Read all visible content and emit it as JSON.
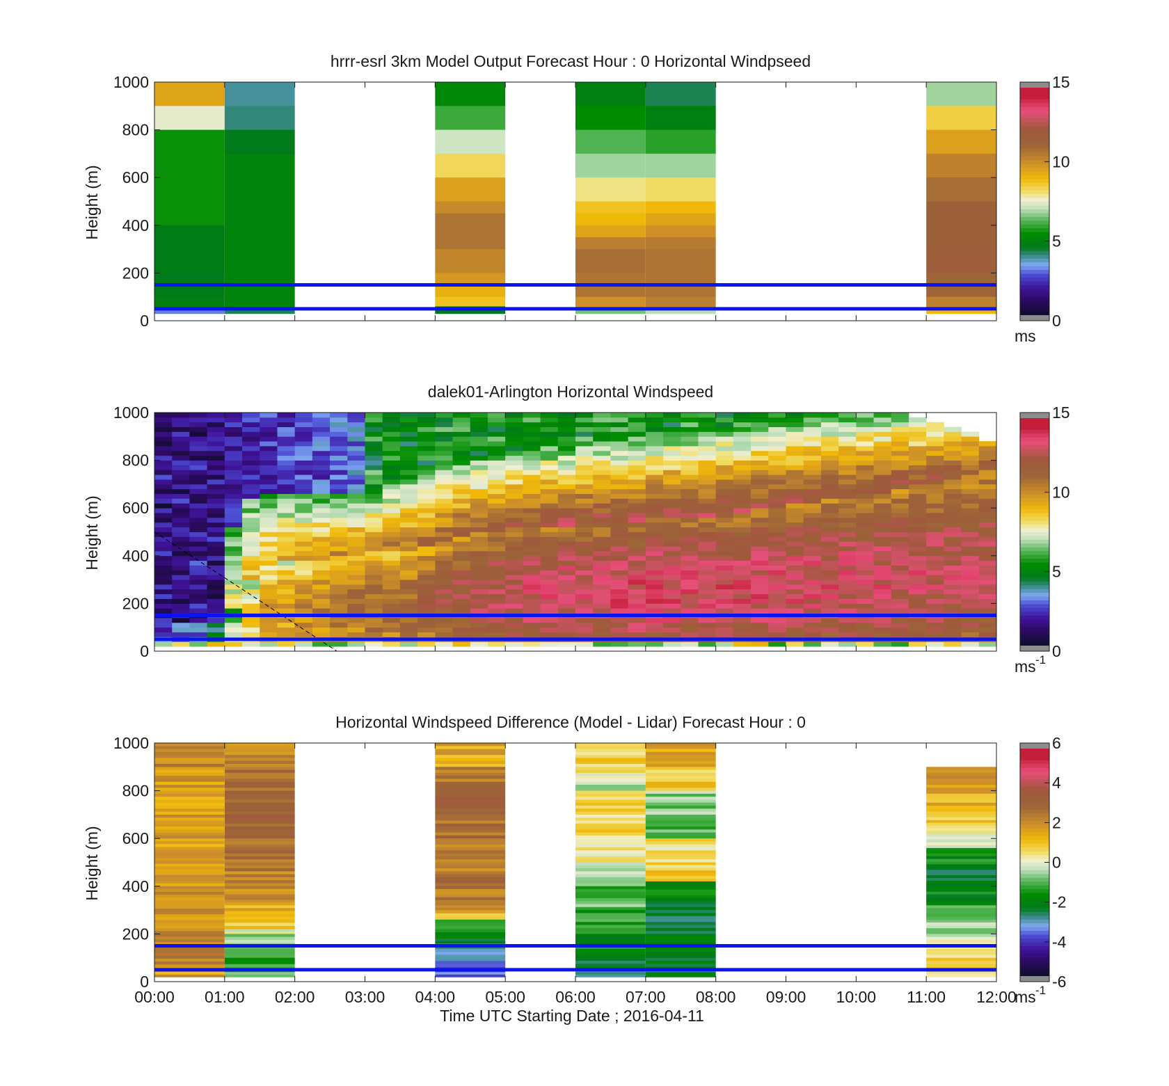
{
  "chart_data": [
    {
      "type": "heatmap",
      "title": "hrrr-esrl 3km Model Output   Forecast Hour : 0 Horizontal Windpseed",
      "ylabel": "Height (m)",
      "xlabel": "",
      "ylim": [
        0,
        1000
      ],
      "yticks": [
        "0",
        "200",
        "400",
        "600",
        "800",
        "1000"
      ],
      "xlim_hours": [
        0,
        12
      ],
      "colorbar": {
        "min": 0,
        "max": 15,
        "ticks": [
          "0",
          "5",
          "10",
          "15"
        ],
        "unit": "ms",
        "scale": "speed"
      },
      "reference_lines_m": [
        150,
        50
      ],
      "columns": [
        {
          "start": 0,
          "end": 1,
          "bottom": 30,
          "cells": [
            [
              1000,
              9.5
            ],
            [
              900,
              7.5
            ],
            [
              800,
              5.5
            ],
            [
              600,
              5.5
            ],
            [
              400,
              4.6
            ],
            [
              200,
              4.5
            ],
            [
              100,
              4.8
            ],
            [
              50,
              3.0
            ]
          ]
        },
        {
          "start": 1,
          "end": 2,
          "bottom": 30,
          "cells": [
            [
              1000,
              3.8
            ],
            [
              900,
              4.0
            ],
            [
              800,
              4.5
            ],
            [
              700,
              5.0
            ],
            [
              400,
              5.0
            ],
            [
              100,
              5.0
            ],
            [
              50,
              4.2
            ]
          ]
        },
        {
          "start": 4,
          "end": 5,
          "bottom": 30,
          "cells": [
            [
              1000,
              5.2
            ],
            [
              900,
              6.0
            ],
            [
              800,
              7.2
            ],
            [
              700,
              8.3
            ],
            [
              600,
              9.6
            ],
            [
              500,
              10.2
            ],
            [
              450,
              10.8
            ],
            [
              300,
              10.3
            ],
            [
              200,
              9.8
            ],
            [
              150,
              9.2
            ],
            [
              100,
              8.8
            ],
            [
              60,
              4.5
            ]
          ]
        },
        {
          "start": 6,
          "end": 7,
          "bottom": 30,
          "cells": [
            [
              1000,
              4.8
            ],
            [
              900,
              5.4
            ],
            [
              800,
              6.2
            ],
            [
              700,
              6.8
            ],
            [
              600,
              8.0
            ],
            [
              500,
              8.8
            ],
            [
              450,
              9.0
            ],
            [
              400,
              9.5
            ],
            [
              350,
              10.5
            ],
            [
              300,
              11.0
            ],
            [
              200,
              10.8
            ],
            [
              100,
              10.0
            ],
            [
              50,
              6.5
            ]
          ]
        },
        {
          "start": 7,
          "end": 8,
          "bottom": 30,
          "cells": [
            [
              1000,
              4.2
            ],
            [
              900,
              4.8
            ],
            [
              800,
              5.8
            ],
            [
              700,
              6.8
            ],
            [
              600,
              8.2
            ],
            [
              500,
              9.0
            ],
            [
              450,
              9.5
            ],
            [
              400,
              10.0
            ],
            [
              350,
              10.6
            ],
            [
              300,
              10.8
            ],
            [
              100,
              10.5
            ],
            [
              50,
              7.0
            ]
          ]
        },
        {
          "start": 11,
          "end": 12,
          "bottom": 30,
          "cells": [
            [
              1000,
              6.8
            ],
            [
              900,
              8.5
            ],
            [
              800,
              9.6
            ],
            [
              700,
              10.4
            ],
            [
              600,
              11.0
            ],
            [
              500,
              11.5
            ],
            [
              300,
              11.8
            ],
            [
              200,
              11.2
            ],
            [
              100,
              10.4
            ],
            [
              50,
              9.0
            ]
          ]
        }
      ]
    },
    {
      "type": "heatmap",
      "title": "dalek01-Arlington  Horizontal Windspeed",
      "ylabel": "Height (m)",
      "xlabel": "",
      "ylim": [
        0,
        1000
      ],
      "yticks": [
        "0",
        "200",
        "400",
        "600",
        "800",
        "1000"
      ],
      "xlim_hours": [
        0,
        12
      ],
      "colorbar": {
        "min": 0,
        "max": 15,
        "ticks": [
          "0",
          "5",
          "10",
          "15"
        ],
        "unit": "ms",
        "unit_exp": "-1",
        "scale": "speed"
      },
      "reference_lines_m": [
        150,
        50
      ],
      "dashed_line": {
        "from": [
          0,
          500
        ],
        "to": [
          2.6,
          0
        ]
      },
      "jet_profile": {
        "hours": [
          0,
          0.5,
          1.0,
          1.25,
          1.5,
          2.0,
          2.5,
          3.0,
          3.5,
          4.0,
          4.5,
          5.0,
          6.0,
          7.0,
          8.0,
          9.0,
          10.0,
          11.0,
          11.8
        ],
        "top_m": [
          0,
          0,
          100,
          250,
          330,
          370,
          380,
          400,
          410,
          440,
          480,
          500,
          520,
          540,
          560,
          600,
          640,
          690,
          740
        ],
        "mix_top_m": [
          300,
          300,
          400,
          600,
          640,
          650,
          650,
          650,
          700,
          760,
          800,
          820,
          860,
          900,
          930,
          960,
          1000,
          1000,
          1000
        ],
        "core_speed": [
          0,
          0,
          6,
          8,
          9.5,
          10,
          10.5,
          11,
          11,
          12,
          12.5,
          13,
          13.5,
          13.5,
          13.5,
          13.3,
          13.2,
          13.0,
          12.8
        ]
      }
    },
    {
      "type": "heatmap",
      "title": "Horizontal Windspeed Difference (Model - Lidar) Forecast Hour : 0",
      "ylabel": "Height (m)",
      "xlabel": "Time UTC  Starting Date ; 2016-04-11",
      "ylim": [
        0,
        1000
      ],
      "yticks": [
        "0",
        "200",
        "400",
        "600",
        "800",
        "1000"
      ],
      "xticks": [
        "00:00",
        "01:00",
        "02:00",
        "03:00",
        "04:00",
        "05:00",
        "06:00",
        "07:00",
        "08:00",
        "09:00",
        "10:00",
        "11:00",
        "12:00"
      ],
      "xlim_hours": [
        0,
        12
      ],
      "colorbar": {
        "min": -6,
        "max": 6,
        "ticks": [
          "-6",
          "-4",
          "-2",
          "0",
          "2",
          "4",
          "6"
        ],
        "unit": "ms",
        "unit_exp": "-1",
        "scale": "diff"
      },
      "reference_lines_m": [
        150,
        50
      ],
      "columns": [
        {
          "start": 0,
          "end": 1,
          "bottom": 20,
          "cells": [
            [
              1000,
              2.2
            ],
            [
              900,
              1.8
            ],
            [
              800,
              1.6
            ],
            [
              700,
              1.8
            ],
            [
              600,
              1.7
            ],
            [
              400,
              2.0
            ],
            [
              200,
              2.3
            ],
            [
              120,
              2.4
            ],
            [
              60,
              1.6
            ],
            [
              30,
              2.4
            ]
          ]
        },
        {
          "start": 1,
          "end": 2,
          "bottom": 20,
          "cells": [
            [
              1000,
              2.3
            ],
            [
              900,
              2.7
            ],
            [
              800,
              3.0
            ],
            [
              700,
              3.2
            ],
            [
              600,
              2.8
            ],
            [
              500,
              2.4
            ],
            [
              400,
              2.0
            ],
            [
              320,
              1.3
            ],
            [
              260,
              0.8
            ],
            [
              220,
              0.0
            ],
            [
              200,
              -0.6
            ],
            [
              150,
              -0.9
            ],
            [
              100,
              -1.2
            ],
            [
              60,
              -1.0
            ],
            [
              30,
              -0.8
            ]
          ]
        },
        {
          "start": 4,
          "end": 5,
          "bottom": 20,
          "cells": [
            [
              1000,
              1.5
            ],
            [
              900,
              2.5
            ],
            [
              800,
              3.0
            ],
            [
              700,
              2.8
            ],
            [
              600,
              2.3
            ],
            [
              500,
              2.0
            ],
            [
              450,
              3.2
            ],
            [
              400,
              2.5
            ],
            [
              330,
              2.2
            ],
            [
              300,
              1.3
            ],
            [
              260,
              -1.0
            ],
            [
              220,
              -2.0
            ],
            [
              180,
              -2.8
            ],
            [
              150,
              -3.0
            ],
            [
              100,
              -3.6
            ],
            [
              60,
              -3.8
            ],
            [
              30,
              -4.0
            ]
          ]
        },
        {
          "start": 6,
          "end": 7,
          "bottom": 20,
          "cells": [
            [
              1000,
              0.8
            ],
            [
              900,
              0.3
            ],
            [
              850,
              -0.5
            ],
            [
              800,
              0.6
            ],
            [
              700,
              0.7
            ],
            [
              600,
              0.5
            ],
            [
              500,
              -0.3
            ],
            [
              400,
              -1.0
            ],
            [
              300,
              -1.5
            ],
            [
              200,
              -2.3
            ],
            [
              100,
              -2.6
            ],
            [
              50,
              -2.8
            ]
          ]
        },
        {
          "start": 7,
          "end": 8,
          "bottom": 20,
          "cells": [
            [
              1000,
              1.6
            ],
            [
              900,
              0.8
            ],
            [
              800,
              -0.8
            ],
            [
              700,
              -1.0
            ],
            [
              600,
              0.5
            ],
            [
              500,
              0.8
            ],
            [
              420,
              -1.8
            ],
            [
              350,
              -2.7
            ],
            [
              300,
              -2.5
            ],
            [
              200,
              -2.3
            ],
            [
              100,
              -2.4
            ],
            [
              50,
              -2.6
            ]
          ]
        },
        {
          "start": 11,
          "end": 12,
          "bottom": 20,
          "cells": [
            [
              900,
              1.8
            ],
            [
              800,
              1.4
            ],
            [
              700,
              0.8
            ],
            [
              620,
              -0.4
            ],
            [
              560,
              -1.8
            ],
            [
              480,
              -2.4
            ],
            [
              400,
              -1.9
            ],
            [
              320,
              -1.2
            ],
            [
              260,
              -0.6
            ],
            [
              200,
              -0.3
            ],
            [
              150,
              0.4
            ],
            [
              100,
              1.2
            ],
            [
              60,
              0.5
            ],
            [
              30,
              0.2
            ]
          ]
        }
      ]
    }
  ]
}
